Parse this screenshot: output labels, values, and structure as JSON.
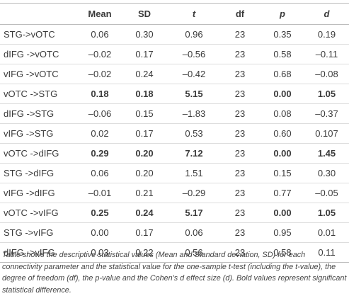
{
  "table": {
    "headers": [
      "Mean",
      "SD",
      "t",
      "df",
      "p",
      "d"
    ],
    "header_italic": [
      false,
      false,
      true,
      false,
      true,
      true
    ],
    "rows": [
      {
        "cells": [
          "STG->vOTC",
          "0.06",
          "0.30",
          "0.96",
          "23",
          "0.35",
          "0.19"
        ],
        "bold": [
          false,
          false,
          false,
          false,
          false,
          false,
          false
        ]
      },
      {
        "cells": [
          "dIFG ->vOTC",
          "–0.02",
          "0.17",
          "–0.56",
          "23",
          "0.58",
          "–0.11"
        ],
        "bold": [
          false,
          false,
          false,
          false,
          false,
          false,
          false
        ]
      },
      {
        "cells": [
          "vIFG ->vOTC",
          "–0.02",
          "0.24",
          "–0.42",
          "23",
          "0.68",
          "–0.08"
        ],
        "bold": [
          false,
          false,
          false,
          false,
          false,
          false,
          false
        ]
      },
      {
        "cells": [
          "vOTC ->STG",
          "0.18",
          "0.18",
          "5.15",
          "23",
          "0.00",
          "1.05"
        ],
        "bold": [
          false,
          true,
          true,
          true,
          false,
          true,
          true
        ]
      },
      {
        "cells": [
          "dIFG ->STG",
          "–0.06",
          "0.15",
          "–1.83",
          "23",
          "0.08",
          "–0.37"
        ],
        "bold": [
          false,
          false,
          false,
          false,
          false,
          false,
          false
        ]
      },
      {
        "cells": [
          "vIFG ->STG",
          "0.02",
          "0.17",
          "0.53",
          "23",
          "0.60",
          "0.107"
        ],
        "bold": [
          false,
          false,
          false,
          false,
          false,
          false,
          false
        ]
      },
      {
        "cells": [
          "vOTC ->dIFG",
          "0.29",
          "0.20",
          "7.12",
          "23",
          "0.00",
          "1.45"
        ],
        "bold": [
          false,
          true,
          true,
          true,
          false,
          true,
          true
        ]
      },
      {
        "cells": [
          "STG ->dIFG",
          "0.06",
          "0.20",
          "1.51",
          "23",
          "0.15",
          "0.30"
        ],
        "bold": [
          false,
          false,
          false,
          false,
          false,
          false,
          false
        ]
      },
      {
        "cells": [
          "vIFG ->dIFG",
          "–0.01",
          "0.21",
          "–0.29",
          "23",
          "0.77",
          "–0.05"
        ],
        "bold": [
          false,
          false,
          false,
          false,
          false,
          false,
          false
        ]
      },
      {
        "cells": [
          "vOTC ->vIFG",
          "0.25",
          "0.24",
          "5.17",
          "23",
          "0.00",
          "1.05"
        ],
        "bold": [
          false,
          true,
          true,
          true,
          false,
          true,
          true
        ]
      },
      {
        "cells": [
          "STG ->vIFG",
          "0.00",
          "0.17",
          "0.06",
          "23",
          "0.95",
          "0.01"
        ],
        "bold": [
          false,
          false,
          false,
          false,
          false,
          false,
          false
        ]
      },
      {
        "cells": [
          "dIFG ->vIFG",
          "0.03",
          "0.22",
          "0.56",
          "23",
          "0.58",
          "0.11"
        ],
        "bold": [
          false,
          false,
          false,
          false,
          false,
          false,
          false
        ]
      }
    ],
    "caption": "Table shows the descriptive statistical values (Mean and Standard deviation, SD) for each connectivity parameter and the statistical value for the one-sample t-test (including the t-value), the degree of freedom (df), the p-value and the Cohen's d effect size (d). Bold values represent significant statistical difference."
  }
}
